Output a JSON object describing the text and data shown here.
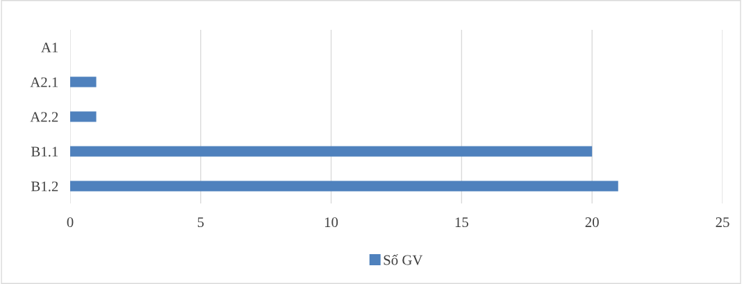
{
  "chart_data": {
    "type": "bar",
    "orientation": "horizontal",
    "categories": [
      "A1",
      "A2.1",
      "A2.2",
      "B1.1",
      "B1.2"
    ],
    "series": [
      {
        "name": "Số GV",
        "color": "#4f81bd",
        "values": [
          0,
          1,
          1,
          20,
          21
        ]
      }
    ],
    "xlim": [
      0,
      25
    ],
    "xticks": [
      0,
      5,
      10,
      15,
      20,
      25
    ],
    "grid": "x",
    "legend": "bottom"
  }
}
